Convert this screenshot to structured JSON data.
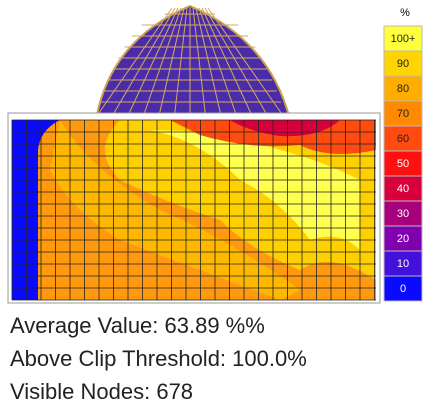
{
  "legend": {
    "unit": "%",
    "items": [
      {
        "label": "100+",
        "color": "#ffff3c"
      },
      {
        "label": "90",
        "color": "#ffd400"
      },
      {
        "label": "80",
        "color": "#ffae00"
      },
      {
        "label": "70",
        "color": "#ff8a00"
      },
      {
        "label": "60",
        "color": "#ff4a10"
      },
      {
        "label": "50",
        "color": "#ff1010"
      },
      {
        "label": "40",
        "color": "#d8003c"
      },
      {
        "label": "30",
        "color": "#a8007c"
      },
      {
        "label": "20",
        "color": "#8000b0"
      },
      {
        "label": "10",
        "color": "#4410dc"
      },
      {
        "label": "0",
        "color": "#0a0aff"
      }
    ]
  },
  "stats": [
    "Average Value: 63.89 %%",
    "Above Clip Threshold: 100.0%",
    "Visible Nodes: 678"
  ]
}
